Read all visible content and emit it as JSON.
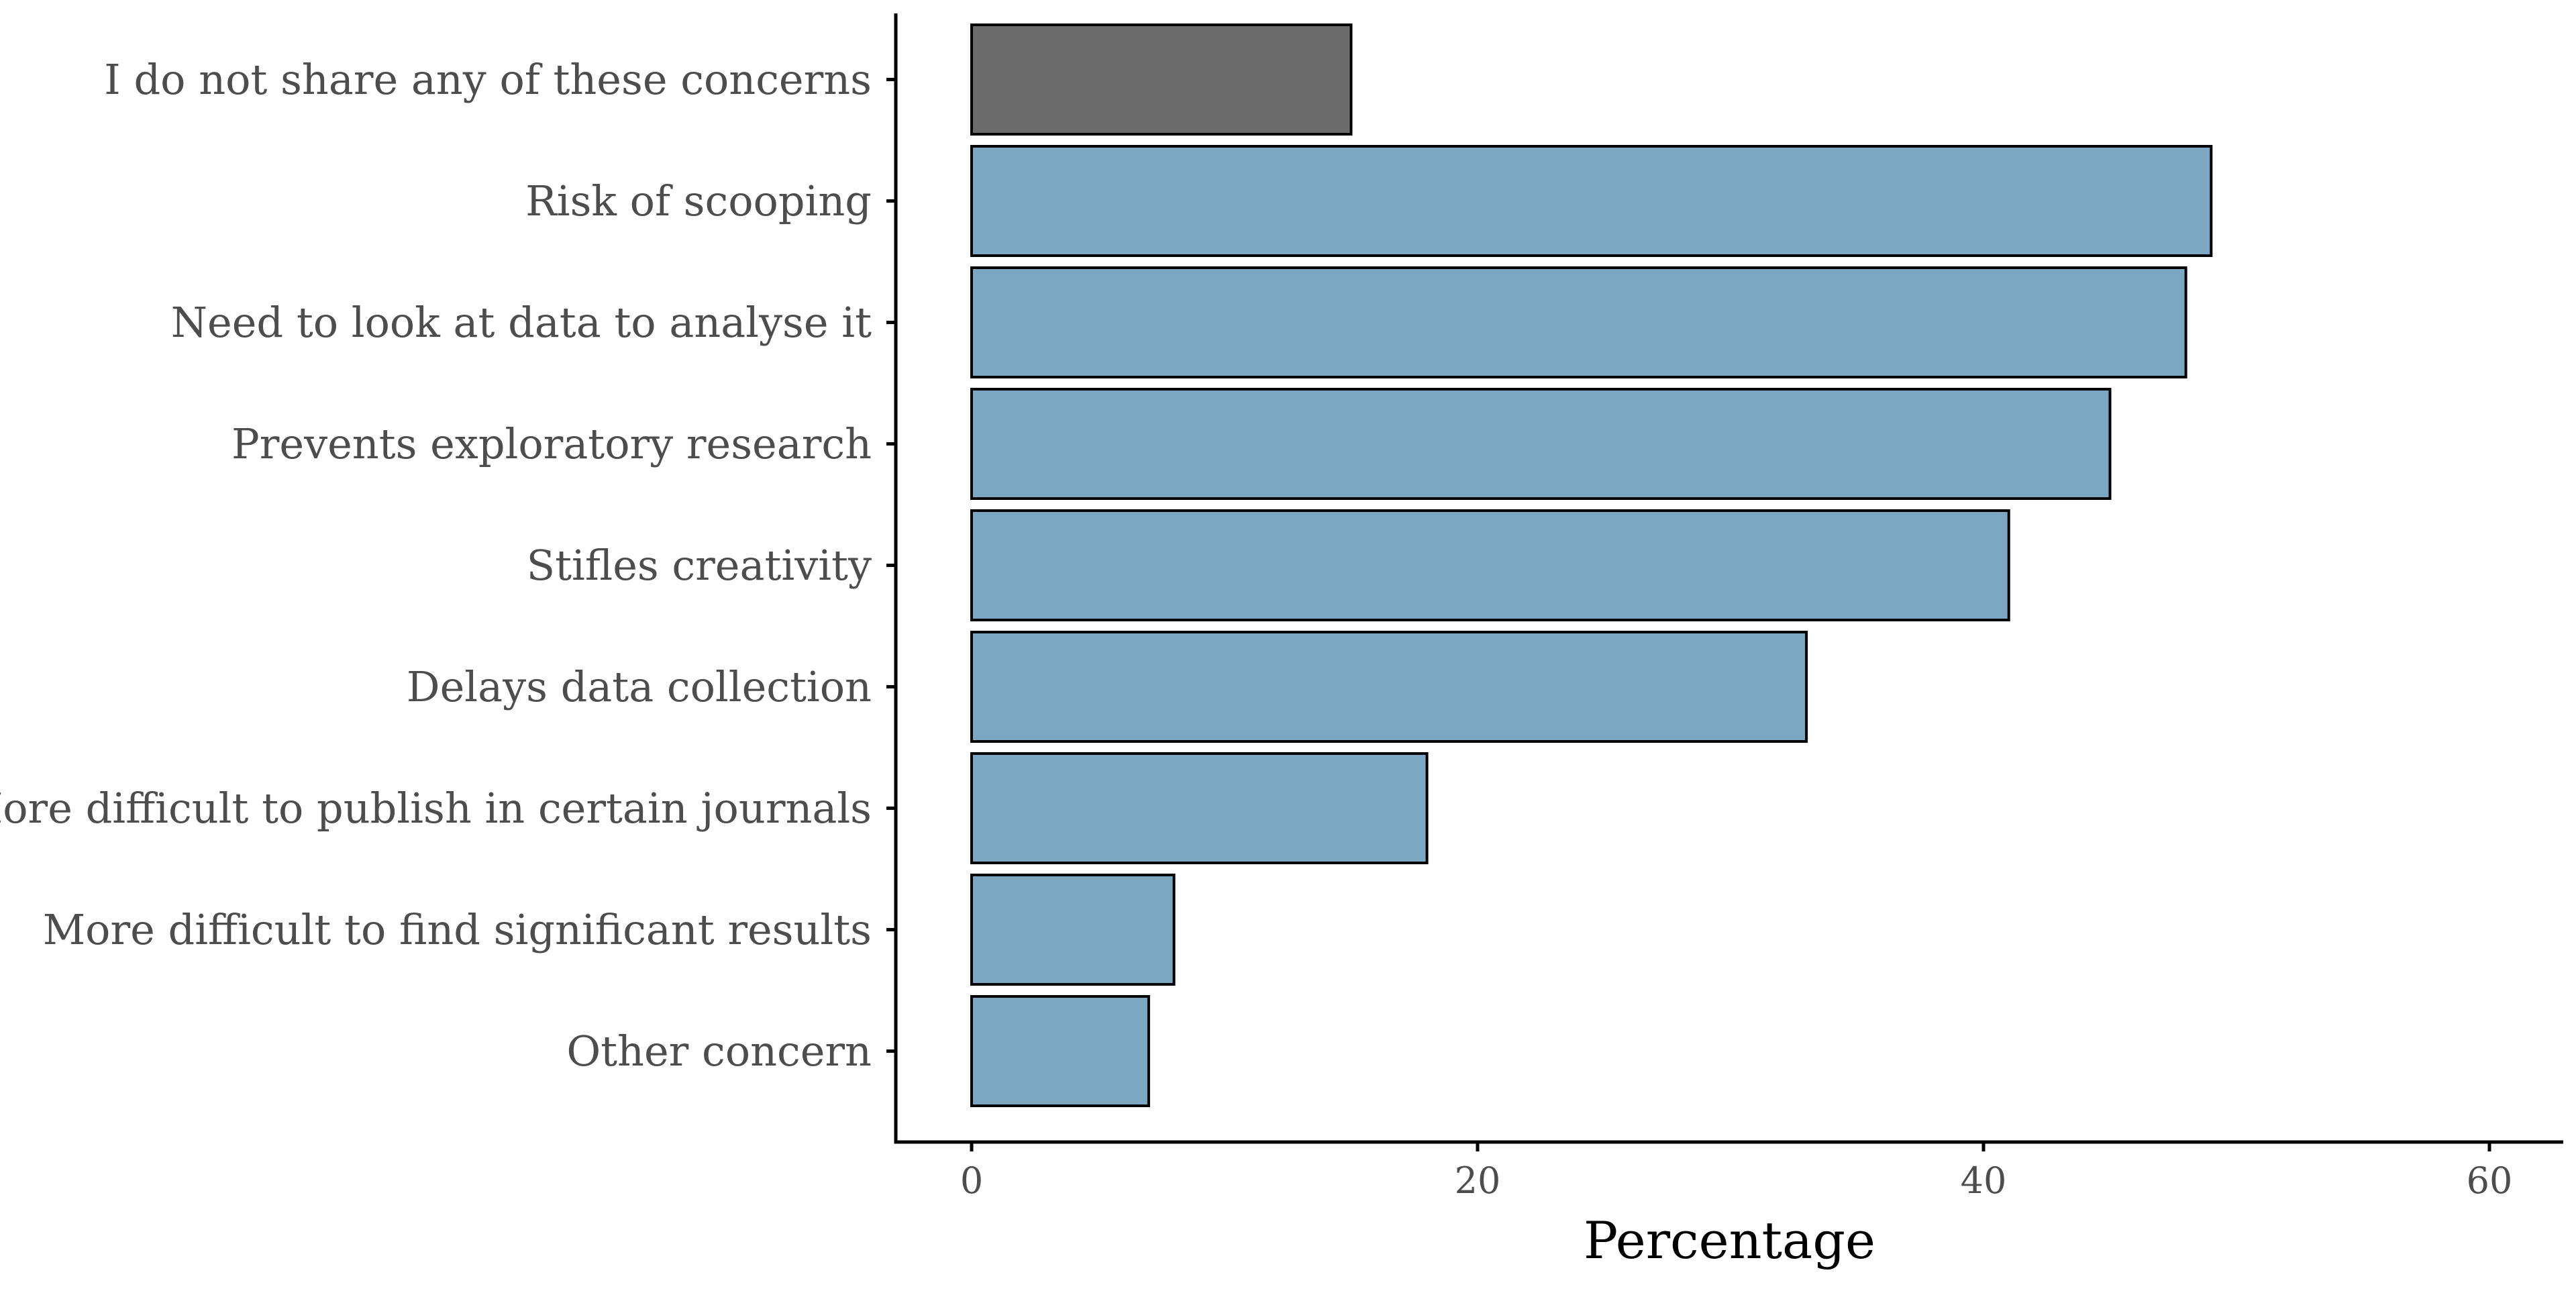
{
  "chart_data": {
    "type": "bar",
    "orientation": "horizontal",
    "categories": [
      "I do not share any of these concerns",
      "Risk of scooping",
      "Need to look at data to analyse it",
      "Prevents exploratory research",
      "Stifles creativity",
      "Delays data collection",
      "More difficult to publish in certain journals",
      "More difficult to find significant results",
      "Other concern"
    ],
    "values": [
      15,
      49,
      48,
      45,
      41,
      33,
      18,
      8,
      7
    ],
    "bar_colors": [
      "#6b6b6b",
      "#7ba7c3",
      "#7ba7c3",
      "#7ba7c3",
      "#7ba7c3",
      "#7ba7c3",
      "#7ba7c3",
      "#7ba7c3",
      "#7ba7c3"
    ],
    "xlabel": "Percentage",
    "ylabel": "",
    "xlim": [
      -3,
      63
    ],
    "xticks": [
      0,
      20,
      40,
      60
    ],
    "xtick_labels": [
      "0",
      "20",
      "40",
      "60"
    ],
    "grid": false,
    "legend": "none"
  }
}
